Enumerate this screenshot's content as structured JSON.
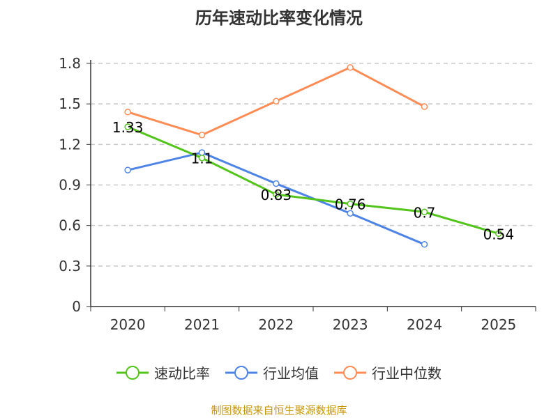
{
  "chart_data": {
    "type": "line",
    "title": "历年速动比率变化情况",
    "categories": [
      "2020",
      "2021",
      "2022",
      "2023",
      "2024",
      "2025"
    ],
    "ylim": [
      0,
      1.8
    ],
    "yticks": [
      "0",
      "0.3",
      "0.6",
      "0.9",
      "1.2",
      "1.5",
      "1.8"
    ],
    "grid": true,
    "legend_position": "bottom",
    "series": [
      {
        "name": "速动比率",
        "color": "#52c41a",
        "values": [
          1.33,
          1.1,
          0.83,
          0.76,
          0.7,
          0.54
        ],
        "labels": [
          "1.33",
          "1.1",
          "0.83",
          "0.76",
          "0.7",
          "0.54"
        ]
      },
      {
        "name": "行业均值",
        "color": "#4e84e6",
        "values": [
          1.01,
          1.14,
          0.91,
          0.69,
          0.46,
          null
        ]
      },
      {
        "name": "行业中位数",
        "color": "#ff8c55",
        "values": [
          1.44,
          1.27,
          1.52,
          1.77,
          1.48,
          null
        ]
      }
    ]
  },
  "source": "制图数据来自恒生聚源数据库"
}
